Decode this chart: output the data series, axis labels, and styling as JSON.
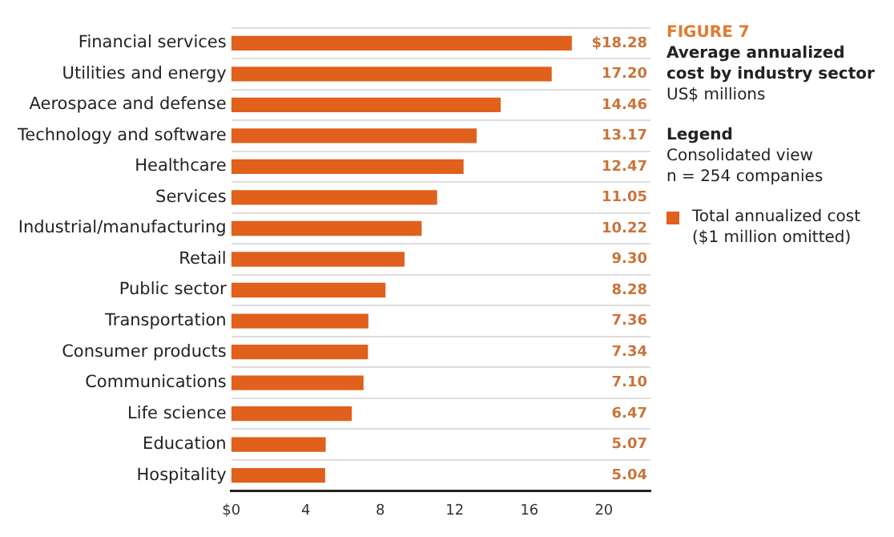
{
  "chart_data": {
    "type": "bar",
    "orientation": "horizontal",
    "title": "Average annualized cost by industry sector",
    "subtitle": "US$ millions",
    "legend_title": "Legend",
    "annotations": [
      "FIGURE 7",
      "Consolidated view",
      "n = 254 companies"
    ],
    "categories": [
      "Financial services",
      "Utilities and energy",
      "Aerospace and defense",
      "Technology and software",
      "Healthcare",
      "Services",
      "Industrial/manufacturing",
      "Retail",
      "Public sector",
      "Transportation",
      "Consumer products",
      "Communications",
      "Life science",
      "Education",
      "Hospitality"
    ],
    "series": [
      {
        "name": "Total annualized cost ($1 million omitted)",
        "color": "#e0601c",
        "values": [
          18.28,
          17.2,
          14.46,
          13.17,
          12.47,
          11.05,
          10.22,
          9.3,
          8.28,
          7.36,
          7.34,
          7.1,
          6.47,
          5.07,
          5.04
        ],
        "value_labels": [
          "$18.28",
          "17.20",
          "14.46",
          "13.17",
          "12.47",
          "11.05",
          "10.22",
          "9.30",
          "8.28",
          "7.36",
          "7.34",
          "7.10",
          "6.47",
          "5.07",
          "5.04"
        ]
      }
    ],
    "xlim": [
      0,
      22.5
    ],
    "xticks": [
      {
        "value": 0,
        "label": "$0"
      },
      4,
      8,
      12,
      16,
      20
    ],
    "grid": "y",
    "legend": "right"
  }
}
